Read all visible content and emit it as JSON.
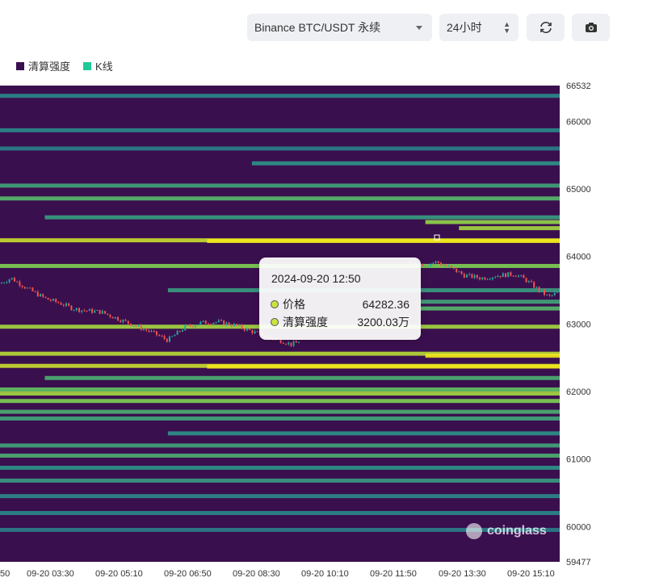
{
  "toolbar": {
    "symbol_select": "Binance BTC/USDT 永续",
    "range_select": "24小时",
    "refresh_icon": "refresh-icon",
    "camera_icon": "camera-icon"
  },
  "legend": [
    {
      "label": "清算强度",
      "color": "#3a0f4e"
    },
    {
      "label": "K线",
      "color": "#20c997"
    }
  ],
  "tooltip": {
    "time": "2024-09-20 12:50",
    "rows": [
      {
        "label": "价格",
        "value": "64282.36"
      },
      {
        "label": "清算强度",
        "value": "3200.03万"
      }
    ]
  },
  "watermark": "coinglass",
  "chart_data": {
    "type": "heatmap",
    "title": "",
    "y_axis": {
      "min": 59477,
      "max": 66532,
      "ticks": [
        66532,
        66000,
        65000,
        64000,
        63000,
        62000,
        61000,
        60000,
        59477
      ],
      "position": "right"
    },
    "x_axis": {
      "ticks": [
        "50",
        "09-20 03:30",
        "09-20 05:10",
        "09-20 06:50",
        "09-20 08:30",
        "09-20 10:10",
        "09-20 11:50",
        "09-20 13:30",
        "09-20 15:10"
      ]
    },
    "colors": {
      "background": "#3a0f4e",
      "low": "#2e4a86",
      "mid": "#2a8f8c",
      "high": "#6fcf5a",
      "max": "#f2e51d",
      "candle_up": "#26a69a",
      "candle_down": "#ef5350"
    },
    "liquidation_bands": [
      {
        "price": 66380,
        "intensity": 0.3,
        "from": 0.0
      },
      {
        "price": 65870,
        "intensity": 0.3,
        "from": 0.0
      },
      {
        "price": 65600,
        "intensity": 0.25,
        "from": 0.0
      },
      {
        "price": 65380,
        "intensity": 0.35,
        "from": 0.45
      },
      {
        "price": 65050,
        "intensity": 0.45,
        "from": 0.0
      },
      {
        "price": 64860,
        "intensity": 0.55,
        "from": 0.0
      },
      {
        "price": 64580,
        "intensity": 0.4,
        "from": 0.08
      },
      {
        "price": 64510,
        "intensity": 0.75,
        "from": 0.76
      },
      {
        "price": 64420,
        "intensity": 0.8,
        "from": 0.82
      },
      {
        "price": 64240,
        "intensity": 0.9,
        "from": 0.0
      },
      {
        "price": 64230,
        "intensity": 1.0,
        "from": 0.37
      },
      {
        "price": 63860,
        "intensity": 0.7,
        "from": 0.0
      },
      {
        "price": 63500,
        "intensity": 0.4,
        "from": 0.3
      },
      {
        "price": 63330,
        "intensity": 0.45,
        "from": 0.75
      },
      {
        "price": 63230,
        "intensity": 0.55,
        "from": 0.75
      },
      {
        "price": 62960,
        "intensity": 0.8,
        "from": 0.0
      },
      {
        "price": 62560,
        "intensity": 0.85,
        "from": 0.0
      },
      {
        "price": 62530,
        "intensity": 1.0,
        "from": 0.76
      },
      {
        "price": 62380,
        "intensity": 0.9,
        "from": 0.0
      },
      {
        "price": 62370,
        "intensity": 1.0,
        "from": 0.37
      },
      {
        "price": 62200,
        "intensity": 0.5,
        "from": 0.08
      },
      {
        "price": 62030,
        "intensity": 0.6,
        "from": 0.0
      },
      {
        "price": 61970,
        "intensity": 0.8,
        "from": 0.0
      },
      {
        "price": 61860,
        "intensity": 0.7,
        "from": 0.0
      },
      {
        "price": 61700,
        "intensity": 0.5,
        "from": 0.0
      },
      {
        "price": 61600,
        "intensity": 0.45,
        "from": 0.0
      },
      {
        "price": 61380,
        "intensity": 0.35,
        "from": 0.3
      },
      {
        "price": 61200,
        "intensity": 0.45,
        "from": 0.0
      },
      {
        "price": 61050,
        "intensity": 0.5,
        "from": 0.0
      },
      {
        "price": 60870,
        "intensity": 0.35,
        "from": 0.0
      },
      {
        "price": 60680,
        "intensity": 0.4,
        "from": 0.0
      },
      {
        "price": 60450,
        "intensity": 0.3,
        "from": 0.0
      },
      {
        "price": 60200,
        "intensity": 0.3,
        "from": 0.0
      },
      {
        "price": 59950,
        "intensity": 0.25,
        "from": 0.0
      }
    ],
    "price_path": [
      [
        0.0,
        63600
      ],
      [
        0.02,
        63680
      ],
      [
        0.05,
        63520
      ],
      [
        0.08,
        63380
      ],
      [
        0.11,
        63300
      ],
      [
        0.13,
        63230
      ],
      [
        0.15,
        63200
      ],
      [
        0.18,
        63180
      ],
      [
        0.21,
        63080
      ],
      [
        0.24,
        62980
      ],
      [
        0.27,
        62880
      ],
      [
        0.3,
        62760
      ],
      [
        0.33,
        62950
      ],
      [
        0.36,
        63020
      ],
      [
        0.39,
        63030
      ],
      [
        0.42,
        62980
      ],
      [
        0.44,
        62920
      ],
      [
        0.46,
        62860
      ],
      [
        0.48,
        62800
      ],
      [
        0.5,
        62760
      ],
      [
        0.52,
        62700
      ],
      [
        0.53,
        62720
      ],
      [
        0.73,
        63900
      ],
      [
        0.76,
        63880
      ],
      [
        0.78,
        63920
      ],
      [
        0.8,
        63850
      ],
      [
        0.83,
        63720
      ],
      [
        0.86,
        63680
      ],
      [
        0.89,
        63720
      ],
      [
        0.92,
        63740
      ],
      [
        0.94,
        63650
      ],
      [
        0.96,
        63520
      ],
      [
        0.98,
        63400
      ],
      [
        1.0,
        63480
      ]
    ]
  }
}
